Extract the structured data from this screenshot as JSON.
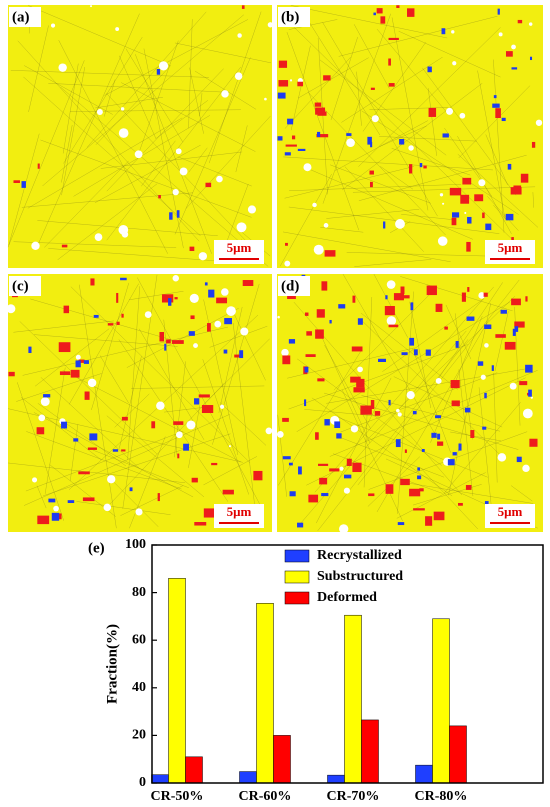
{
  "panels": [
    {
      "label": "(a)",
      "scale_bar": "5μm"
    },
    {
      "label": "(b)",
      "scale_bar": "5μm"
    },
    {
      "label": "(c)",
      "scale_bar": "5μm"
    },
    {
      "label": "(d)",
      "scale_bar": "5μm"
    }
  ],
  "chart_data": {
    "type": "bar",
    "panel_label": "(e)",
    "y_label": "Fraction(%)",
    "categories": [
      "CR-50%",
      "CR-60%",
      "CR-70%",
      "CR-80%"
    ],
    "series": [
      {
        "name": "Recrystallized",
        "color": "#1f3fff",
        "values": [
          3.5,
          4.8,
          3.3,
          7.5
        ]
      },
      {
        "name": "Substructured",
        "color": "#ffff00",
        "values": [
          86,
          75.5,
          70.5,
          69
        ]
      },
      {
        "name": "Deformed",
        "color": "#ff0000",
        "values": [
          11,
          20,
          26.5,
          24
        ]
      }
    ],
    "ylim": [
      0,
      100
    ],
    "yticks": [
      0,
      20,
      40,
      60,
      80,
      100
    ],
    "legend": "upper right"
  }
}
